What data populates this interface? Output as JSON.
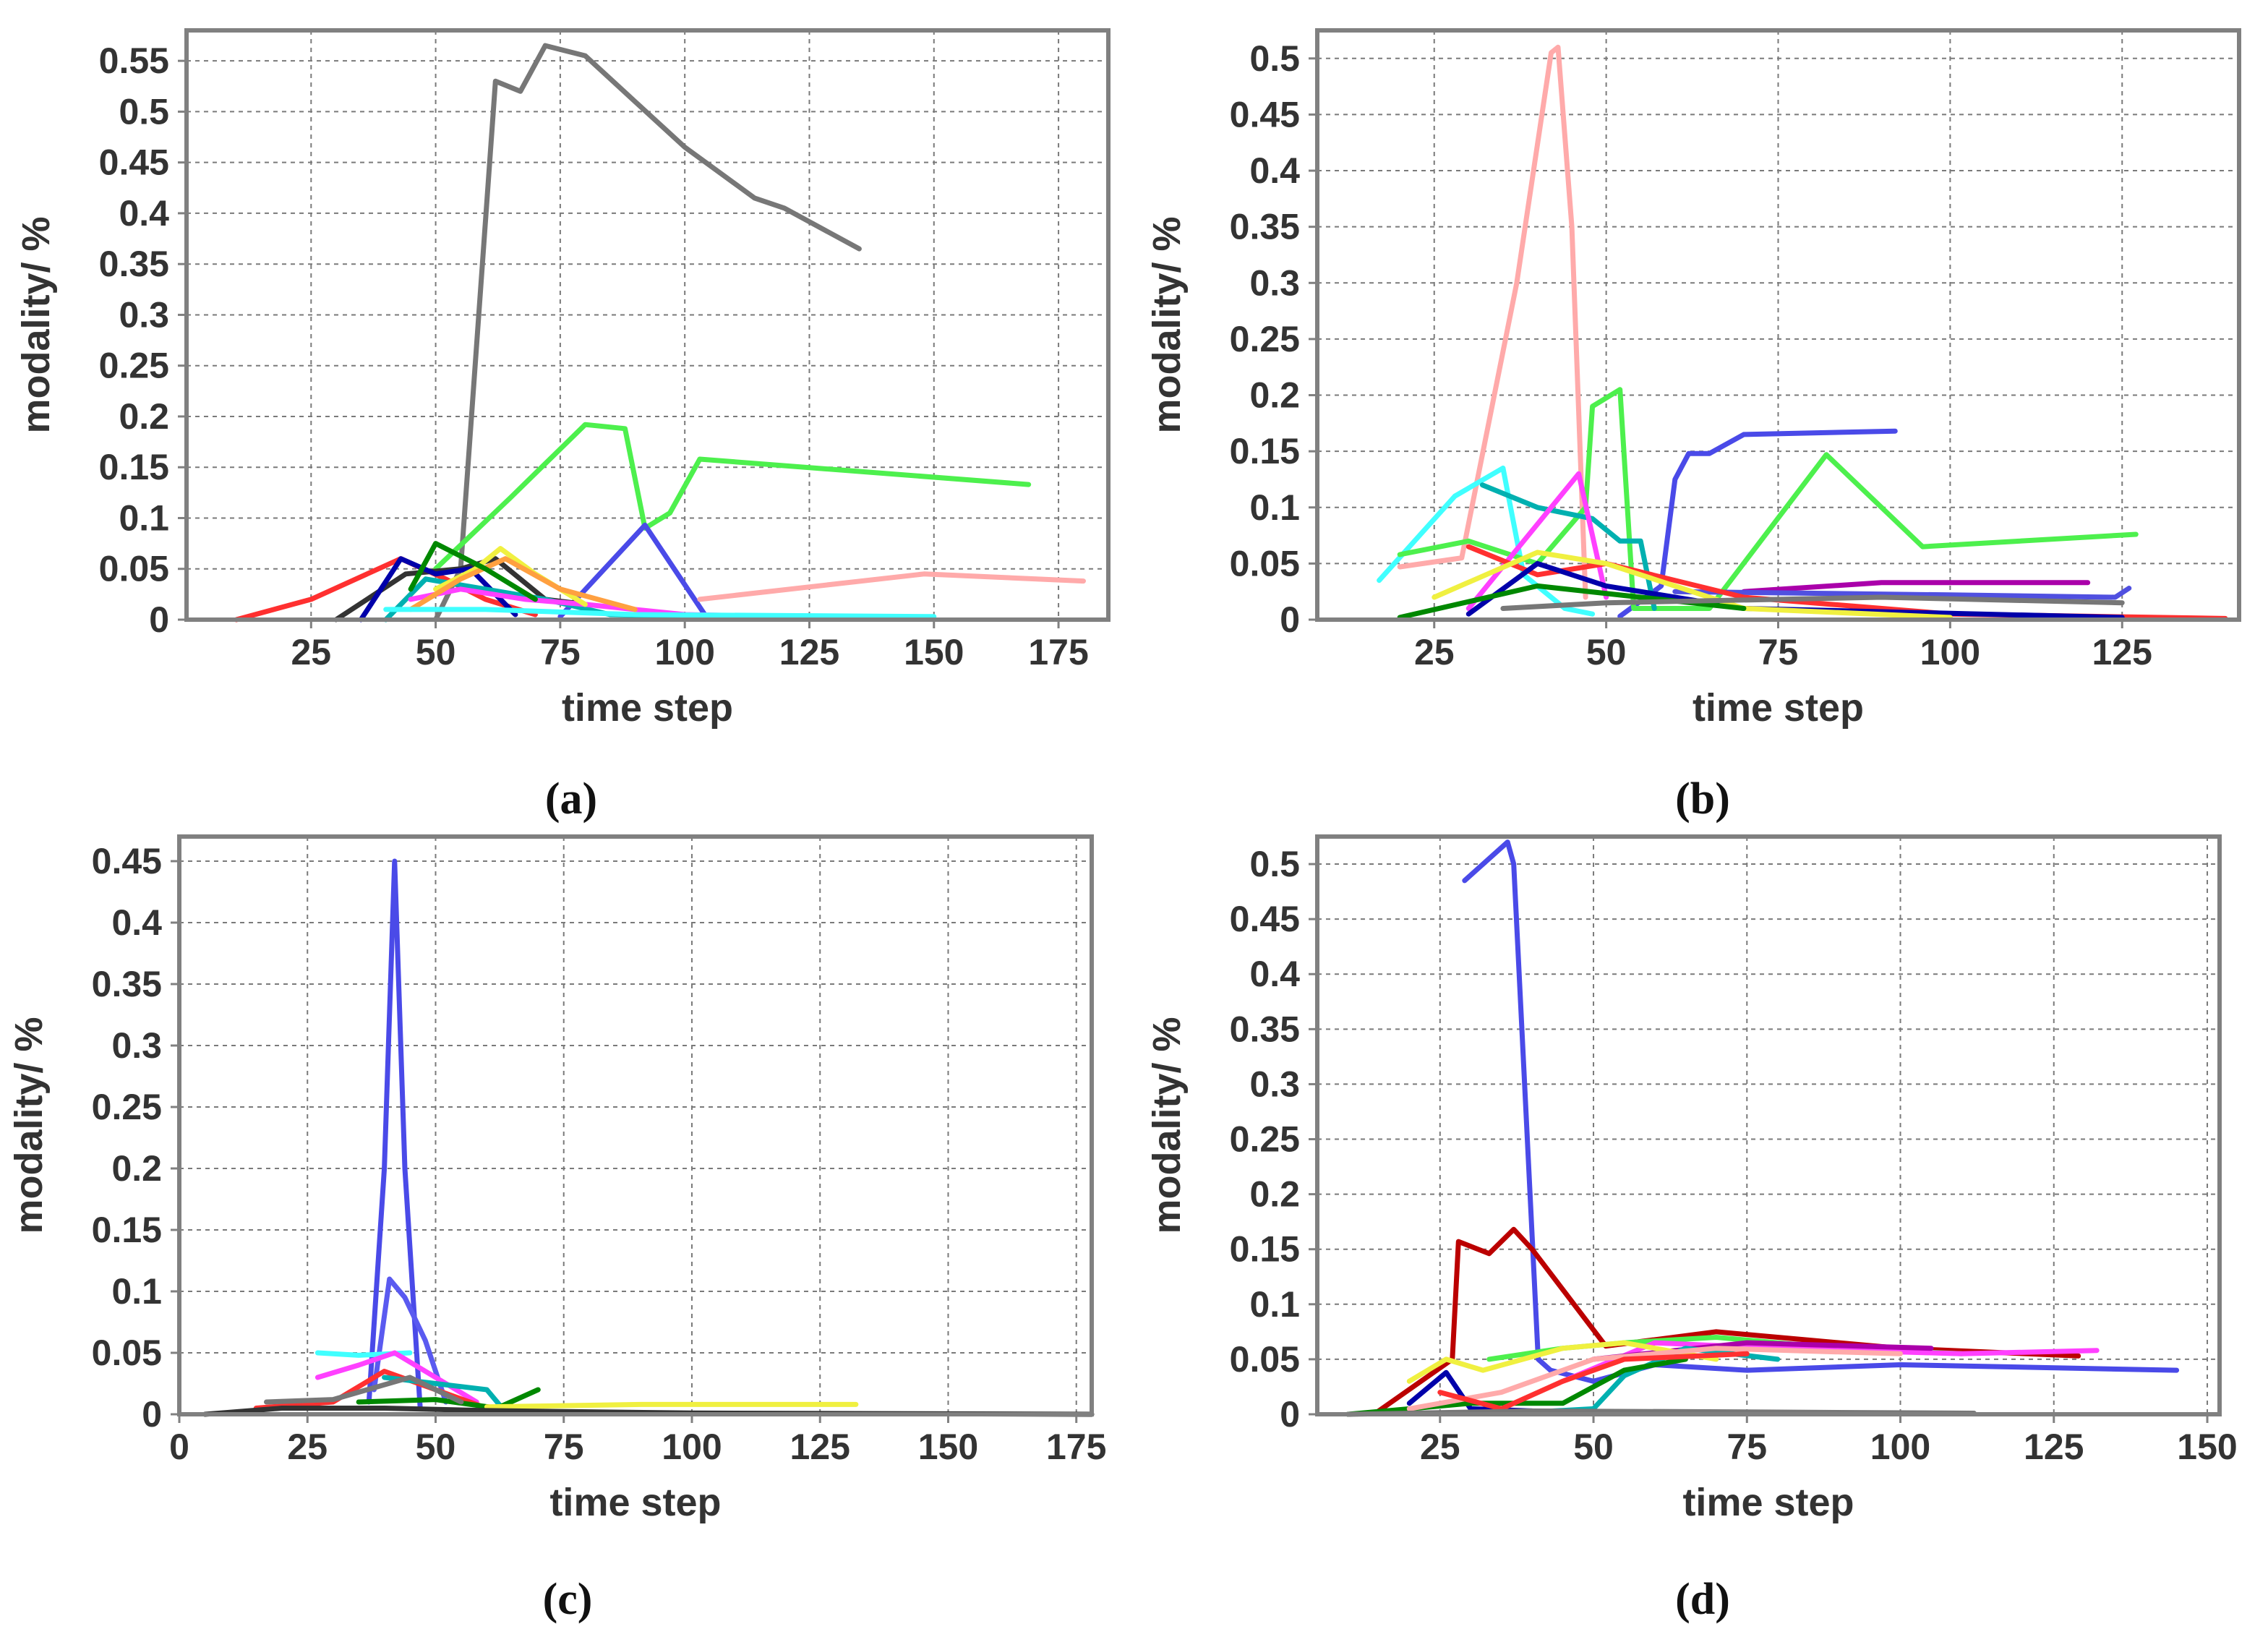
{
  "chart_data": [
    {
      "type": "line",
      "panel_label": "(a)",
      "xlabel": "time step",
      "ylabel": "modality/ %",
      "xlim": [
        0,
        185
      ],
      "ylim": [
        0,
        0.58
      ],
      "xticks": [
        25,
        50,
        75,
        100,
        125,
        150,
        175
      ],
      "xtick_labels": [
        "25",
        "50",
        "75",
        "100",
        "125",
        "150",
        "175"
      ],
      "yticks": [
        0,
        0.05,
        0.1,
        0.15,
        0.2,
        0.25,
        0.3,
        0.35,
        0.4,
        0.45,
        0.5,
        0.55
      ],
      "ytick_labels": [
        "0",
        "0.05",
        "0.1",
        "0.15",
        "0.2",
        "0.25",
        "0.3",
        "0.35",
        "0.4",
        "0.45",
        "0.5",
        "0.55"
      ],
      "grid": true,
      "series": [
        {
          "name": "gray",
          "color": "#777777",
          "x": [
            50,
            55,
            62,
            67,
            72,
            80,
            90,
            100,
            114,
            120,
            135
          ],
          "y": [
            0.0,
            0.05,
            0.53,
            0.52,
            0.565,
            0.555,
            0.51,
            0.465,
            0.415,
            0.405,
            0.365
          ]
        },
        {
          "name": "green",
          "color": "#4df04d",
          "x": [
            50,
            65,
            80,
            88,
            92,
            97,
            103,
            169
          ],
          "y": [
            0.05,
            0.12,
            0.192,
            0.188,
            0.09,
            0.105,
            0.158,
            0.133
          ]
        },
        {
          "name": "blue",
          "color": "#4a4ae8",
          "x": [
            75,
            92,
            104
          ],
          "y": [
            0.003,
            0.093,
            0.005
          ]
        },
        {
          "name": "pink",
          "color": "#ffaaaa",
          "x": [
            103,
            148,
            180
          ],
          "y": [
            0.02,
            0.045,
            0.038
          ]
        },
        {
          "name": "red",
          "color": "#ff3030",
          "x": [
            10,
            25,
            43,
            52,
            60,
            70
          ],
          "y": [
            0.0,
            0.02,
            0.06,
            0.04,
            0.02,
            0.005
          ]
        },
        {
          "name": "black",
          "color": "#333333",
          "x": [
            30,
            44,
            55,
            62,
            72,
            80
          ],
          "y": [
            0.0,
            0.045,
            0.05,
            0.06,
            0.02,
            0.015
          ]
        },
        {
          "name": "navy",
          "color": "#0000aa",
          "x": [
            35,
            43,
            50,
            57,
            66
          ],
          "y": [
            0.0,
            0.06,
            0.045,
            0.05,
            0.005
          ]
        },
        {
          "name": "teal",
          "color": "#00b0b0",
          "x": [
            40,
            48,
            60,
            72,
            85,
            110
          ],
          "y": [
            0.0,
            0.04,
            0.03,
            0.02,
            0.005,
            0.003
          ]
        },
        {
          "name": "magenta",
          "color": "#ff40ff",
          "x": [
            45,
            55,
            68,
            80,
            100,
            130
          ],
          "y": [
            0.02,
            0.03,
            0.02,
            0.015,
            0.005,
            0.002
          ]
        },
        {
          "name": "yellow",
          "color": "#f0f040",
          "x": [
            50,
            58,
            63,
            70,
            80
          ],
          "y": [
            0.03,
            0.05,
            0.07,
            0.045,
            0.015
          ]
        },
        {
          "name": "orange",
          "color": "#ffa040",
          "x": [
            45,
            55,
            64,
            75,
            90
          ],
          "y": [
            0.01,
            0.04,
            0.06,
            0.03,
            0.01
          ]
        },
        {
          "name": "cyan",
          "color": "#40ffff",
          "x": [
            40,
            60,
            90,
            150
          ],
          "y": [
            0.01,
            0.01,
            0.005,
            0.003
          ]
        },
        {
          "name": "darkgreen",
          "color": "#008800",
          "x": [
            45,
            50,
            60,
            70
          ],
          "y": [
            0.03,
            0.075,
            0.05,
            0.02
          ]
        }
      ]
    },
    {
      "type": "line",
      "panel_label": "(b)",
      "xlabel": "time step",
      "ylabel": "modality/ %",
      "xlim": [
        8,
        142
      ],
      "ylim": [
        0,
        0.525
      ],
      "xticks": [
        25,
        50,
        75,
        100,
        125
      ],
      "xtick_labels": [
        "25",
        "50",
        "75",
        "100",
        "125"
      ],
      "yticks": [
        0,
        0.05,
        0.1,
        0.15,
        0.2,
        0.25,
        0.3,
        0.35,
        0.4,
        0.45,
        0.5
      ],
      "ytick_labels": [
        "0",
        "0.05",
        "0.1",
        "0.15",
        "0.2",
        "0.25",
        "0.3",
        "0.35",
        "0.4",
        "0.45",
        "0.5"
      ],
      "grid": true,
      "series": [
        {
          "name": "pink",
          "color": "#ffaaaa",
          "x": [
            20,
            29,
            37,
            42,
            43,
            45,
            47
          ],
          "y": [
            0.047,
            0.055,
            0.3,
            0.505,
            0.51,
            0.35,
            0.02
          ]
        },
        {
          "name": "cyan",
          "color": "#40ffff",
          "x": [
            17,
            28,
            35,
            38,
            44,
            48
          ],
          "y": [
            0.035,
            0.11,
            0.135,
            0.04,
            0.01,
            0.005
          ]
        },
        {
          "name": "blue",
          "color": "#4a4ae8",
          "x": [
            52,
            58,
            60,
            62,
            65,
            70,
            92
          ],
          "y": [
            0.003,
            0.03,
            0.125,
            0.148,
            0.148,
            0.165,
            0.168
          ]
        },
        {
          "name": "green",
          "color": "#4df04d",
          "x": [
            20,
            30,
            40,
            47,
            48,
            52,
            54,
            65,
            82,
            96,
            127
          ],
          "y": [
            0.058,
            0.07,
            0.05,
            0.1,
            0.19,
            0.205,
            0.01,
            0.01,
            0.147,
            0.065,
            0.076
          ]
        },
        {
          "name": "teal",
          "color": "#00b0b0",
          "x": [
            32,
            40,
            48,
            52,
            55,
            57
          ],
          "y": [
            0.12,
            0.1,
            0.09,
            0.07,
            0.07,
            0.01
          ]
        },
        {
          "name": "magenta",
          "color": "#ff40ff",
          "x": [
            30,
            38,
            46,
            50
          ],
          "y": [
            0.01,
            0.07,
            0.13,
            0.02
          ]
        },
        {
          "name": "purple",
          "color": "#aa00aa",
          "x": [
            70,
            90,
            120
          ],
          "y": [
            0.025,
            0.033,
            0.033
          ]
        },
        {
          "name": "slateblue",
          "color": "#5050e0",
          "x": [
            60,
            100,
            124,
            126
          ],
          "y": [
            0.025,
            0.022,
            0.02,
            0.028
          ]
        },
        {
          "name": "red",
          "color": "#ff3030",
          "x": [
            30,
            40,
            50,
            70,
            100,
            140
          ],
          "y": [
            0.065,
            0.04,
            0.05,
            0.02,
            0.005,
            0.001
          ]
        },
        {
          "name": "navy",
          "color": "#0000aa",
          "x": [
            30,
            40,
            50,
            70,
            125
          ],
          "y": [
            0.005,
            0.05,
            0.03,
            0.01,
            0.002
          ]
        },
        {
          "name": "yellow",
          "color": "#f0f040",
          "x": [
            25,
            40,
            50,
            70,
            100
          ],
          "y": [
            0.02,
            0.06,
            0.05,
            0.01,
            0.002
          ]
        },
        {
          "name": "darkgreen",
          "color": "#008800",
          "x": [
            20,
            40,
            55,
            70
          ],
          "y": [
            0.002,
            0.03,
            0.02,
            0.01
          ]
        },
        {
          "name": "gray",
          "color": "#777777",
          "x": [
            35,
            50,
            90,
            125
          ],
          "y": [
            0.01,
            0.015,
            0.02,
            0.015
          ]
        }
      ]
    },
    {
      "type": "line",
      "panel_label": "(c)",
      "xlabel": "time step",
      "ylabel": "modality/ %",
      "xlim": [
        0,
        178
      ],
      "ylim": [
        0,
        0.47
      ],
      "xticks": [
        0,
        25,
        50,
        75,
        100,
        125,
        150,
        175
      ],
      "xtick_labels": [
        "0",
        "25",
        "50",
        "75",
        "100",
        "125",
        "150",
        "175"
      ],
      "yticks": [
        0,
        0.05,
        0.1,
        0.15,
        0.2,
        0.25,
        0.3,
        0.35,
        0.4,
        0.45
      ],
      "ytick_labels": [
        "0",
        "0.05",
        "0.1",
        "0.15",
        "0.2",
        "0.25",
        "0.3",
        "0.35",
        "0.4",
        "0.45"
      ],
      "grid": true,
      "series": [
        {
          "name": "blue",
          "color": "#4a4ae8",
          "x": [
            37,
            40,
            42,
            44,
            47
          ],
          "y": [
            0.01,
            0.2,
            0.45,
            0.2,
            0.005
          ]
        },
        {
          "name": "slateblue",
          "color": "#5a5af0",
          "x": [
            38,
            41,
            44,
            48,
            52
          ],
          "y": [
            0.02,
            0.11,
            0.095,
            0.06,
            0.01
          ]
        },
        {
          "name": "cyan",
          "color": "#40ffff",
          "x": [
            27,
            35,
            45
          ],
          "y": [
            0.05,
            0.048,
            0.05
          ]
        },
        {
          "name": "magenta",
          "color": "#ff40ff",
          "x": [
            27,
            35,
            42,
            50,
            58
          ],
          "y": [
            0.03,
            0.04,
            0.05,
            0.03,
            0.01
          ]
        },
        {
          "name": "red",
          "color": "#ff3030",
          "x": [
            15,
            30,
            40,
            50,
            60
          ],
          "y": [
            0.005,
            0.01,
            0.035,
            0.02,
            0.005
          ]
        },
        {
          "name": "teal",
          "color": "#00b0b0",
          "x": [
            40,
            50,
            60,
            63
          ],
          "y": [
            0.03,
            0.025,
            0.02,
            0.005
          ]
        },
        {
          "name": "darkgreen",
          "color": "#008800",
          "x": [
            35,
            50,
            62,
            70
          ],
          "y": [
            0.01,
            0.012,
            0.005,
            0.02
          ]
        },
        {
          "name": "yellow",
          "color": "#f0f040",
          "x": [
            60,
            90,
            132
          ],
          "y": [
            0.006,
            0.008,
            0.008
          ]
        },
        {
          "name": "black",
          "color": "#333333",
          "x": [
            5,
            20,
            40,
            60,
            100,
            178
          ],
          "y": [
            0.0,
            0.005,
            0.005,
            0.003,
            0.001,
            0.0
          ]
        },
        {
          "name": "gray",
          "color": "#777777",
          "x": [
            17,
            30,
            45,
            55
          ],
          "y": [
            0.01,
            0.012,
            0.03,
            0.01
          ]
        }
      ]
    },
    {
      "type": "line",
      "panel_label": "(d)",
      "xlabel": "time step",
      "ylabel": "modality/ %",
      "xlim": [
        5,
        152
      ],
      "ylim": [
        0,
        0.525
      ],
      "xticks": [
        25,
        50,
        75,
        100,
        125,
        150
      ],
      "xtick_labels": [
        "25",
        "50",
        "75",
        "100",
        "125",
        "150"
      ],
      "yticks": [
        0,
        0.05,
        0.1,
        0.15,
        0.2,
        0.25,
        0.3,
        0.35,
        0.4,
        0.45,
        0.5
      ],
      "ytick_labels": [
        "0",
        "0.05",
        "0.1",
        "0.15",
        "0.2",
        "0.25",
        "0.3",
        "0.35",
        "0.4",
        "0.45",
        "0.5"
      ],
      "grid": true,
      "series": [
        {
          "name": "blue",
          "color": "#4a4ae8",
          "x": [
            29,
            36,
            37,
            41,
            43,
            50,
            60,
            75,
            100,
            145
          ],
          "y": [
            0.485,
            0.52,
            0.5,
            0.05,
            0.04,
            0.03,
            0.045,
            0.04,
            0.045,
            0.04
          ]
        },
        {
          "name": "darkred",
          "color": "#bb0000",
          "x": [
            15,
            27,
            28,
            33,
            37,
            40,
            52,
            70,
            100,
            129
          ],
          "y": [
            0.003,
            0.05,
            0.157,
            0.146,
            0.168,
            0.15,
            0.062,
            0.075,
            0.06,
            0.053
          ]
        },
        {
          "name": "green",
          "color": "#4df04d",
          "x": [
            33,
            45,
            55,
            70,
            90,
            110
          ],
          "y": [
            0.05,
            0.06,
            0.065,
            0.07,
            0.06,
            0.055
          ]
        },
        {
          "name": "magenta",
          "color": "#ff40ff",
          "x": [
            45,
            60,
            80,
            110,
            132
          ],
          "y": [
            0.03,
            0.065,
            0.06,
            0.055,
            0.058
          ]
        },
        {
          "name": "purple",
          "color": "#aa00aa",
          "x": [
            50,
            75,
            105
          ],
          "y": [
            0.05,
            0.065,
            0.06
          ]
        },
        {
          "name": "yellow",
          "color": "#f0f040",
          "x": [
            20,
            26,
            32,
            45,
            55,
            70
          ],
          "y": [
            0.03,
            0.05,
            0.04,
            0.06,
            0.065,
            0.05
          ]
        },
        {
          "name": "navy",
          "color": "#0000aa",
          "x": [
            20,
            26,
            30,
            40
          ],
          "y": [
            0.01,
            0.038,
            0.005,
            0.003
          ]
        },
        {
          "name": "teal",
          "color": "#00b0b0",
          "x": [
            40,
            50,
            55,
            65,
            80
          ],
          "y": [
            0.002,
            0.005,
            0.035,
            0.06,
            0.05
          ]
        },
        {
          "name": "darkgreen",
          "color": "#008800",
          "x": [
            10,
            30,
            45,
            55,
            65
          ],
          "y": [
            0.0,
            0.01,
            0.01,
            0.04,
            0.05
          ]
        },
        {
          "name": "pink",
          "color": "#ffaaaa",
          "x": [
            20,
            35,
            50,
            70,
            100
          ],
          "y": [
            0.005,
            0.02,
            0.05,
            0.06,
            0.055
          ]
        },
        {
          "name": "red",
          "color": "#ff3030",
          "x": [
            25,
            35,
            45,
            55,
            75
          ],
          "y": [
            0.02,
            0.005,
            0.03,
            0.05,
            0.055
          ]
        },
        {
          "name": "gray",
          "color": "#777777",
          "x": [
            10,
            40,
            80,
            112
          ],
          "y": [
            0.0,
            0.003,
            0.002,
            0.001
          ]
        }
      ]
    }
  ]
}
